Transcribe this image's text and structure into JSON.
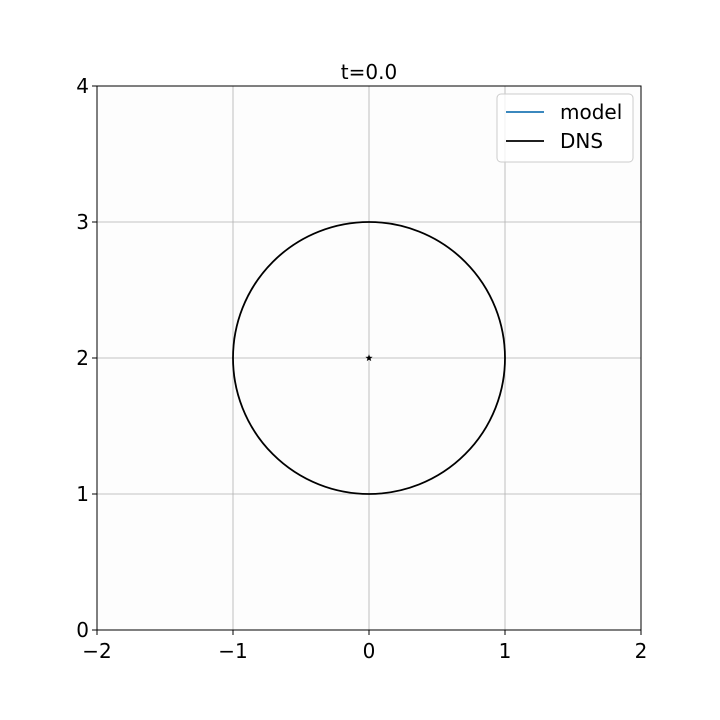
{
  "chart_data": {
    "type": "line",
    "title": "t=0.0",
    "xlabel": "",
    "ylabel": "",
    "xlim": [
      -2,
      2
    ],
    "ylim": [
      0,
      4
    ],
    "xticks": [
      -2,
      -1,
      0,
      1,
      2
    ],
    "yticks": [
      0,
      1,
      2,
      3,
      4
    ],
    "xtick_labels": [
      "−2",
      "−1",
      "0",
      "1",
      "2"
    ],
    "ytick_labels": [
      "0",
      "1",
      "2",
      "3",
      "4"
    ],
    "grid": true,
    "legend_position": "top-right",
    "series": [
      {
        "name": "model",
        "color": "#1f77b4",
        "shape": "point",
        "center": [
          0,
          2
        ]
      },
      {
        "name": "DNS",
        "color": "#000000",
        "shape": "circle",
        "center": [
          0,
          2
        ],
        "radius": 1
      }
    ],
    "markers": [
      {
        "name": "center-star",
        "x": 0,
        "y": 2,
        "symbol": "star"
      }
    ]
  }
}
